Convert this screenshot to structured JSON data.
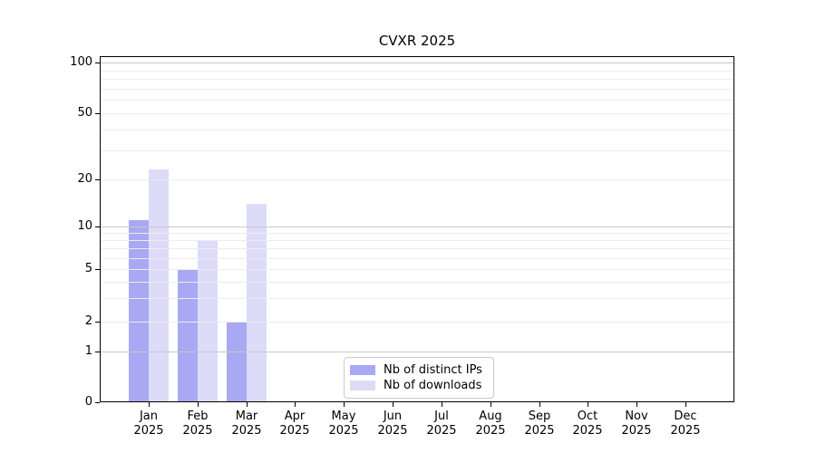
{
  "chart_data": {
    "type": "bar",
    "title": "CVXR 2025",
    "xlabel": "",
    "ylabel": "",
    "categories": [
      "Jan",
      "Feb",
      "Mar",
      "Apr",
      "May",
      "Jun",
      "Jul",
      "Aug",
      "Sep",
      "Oct",
      "Nov",
      "Dec"
    ],
    "category_year": "2025",
    "series": [
      {
        "name": "Nb of distinct IPs",
        "color": "#a8a8f3",
        "values": [
          11,
          5,
          2,
          0,
          0,
          0,
          0,
          0,
          0,
          0,
          0,
          0
        ]
      },
      {
        "name": "Nb of downloads",
        "color": "#dcdcf8",
        "values": [
          23,
          8,
          14,
          0,
          0,
          0,
          0,
          0,
          0,
          0,
          0,
          0
        ]
      }
    ],
    "yticks": [
      0,
      1,
      2,
      5,
      10,
      20,
      50,
      100
    ],
    "yticks_minor": [
      3,
      4,
      6,
      7,
      8,
      9,
      30,
      40,
      60,
      70,
      80,
      90
    ],
    "scale": "symlog-like",
    "ylim": [
      0,
      110
    ],
    "grid": "horizontal, major and minor, drawn above bars",
    "legend_position": "lower center",
    "colors": {
      "grid_minor": "#ececec",
      "grid_major": "#c9c9c9",
      "spine": "#000000",
      "background": "#ffffff"
    }
  }
}
